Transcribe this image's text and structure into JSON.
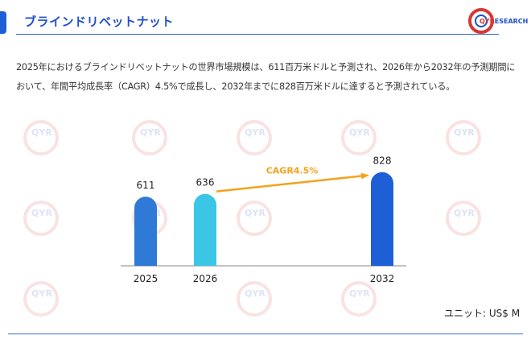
{
  "header": {
    "title": "ブラインドリベットナット",
    "logo_text_1": "QYR",
    "logo_text_2": "ESEARCH"
  },
  "description": "2025年におけるブラインドリベットナットの世界市場規模は、611百万米ドルと予測され、2026年から2032年の予測期間において、年間平均成長率（CAGR）4.5%で成長し、2032年までに828百万米ドルに達すると予測されている。",
  "unit_label": "ユニット: US$ M",
  "watermark_text": "QYR",
  "chart_data": {
    "type": "bar",
    "categories": [
      "2025",
      "2026",
      "2032"
    ],
    "values": [
      611,
      636,
      828
    ],
    "bar_colors": [
      "#2e7ad6",
      "#3cc6e6",
      "#1f5fd6"
    ],
    "annotation": {
      "label": "CAGR4.5%",
      "color": "#f4a21c",
      "from": "2026",
      "to": "2032"
    },
    "axis_color": "#888888"
  }
}
